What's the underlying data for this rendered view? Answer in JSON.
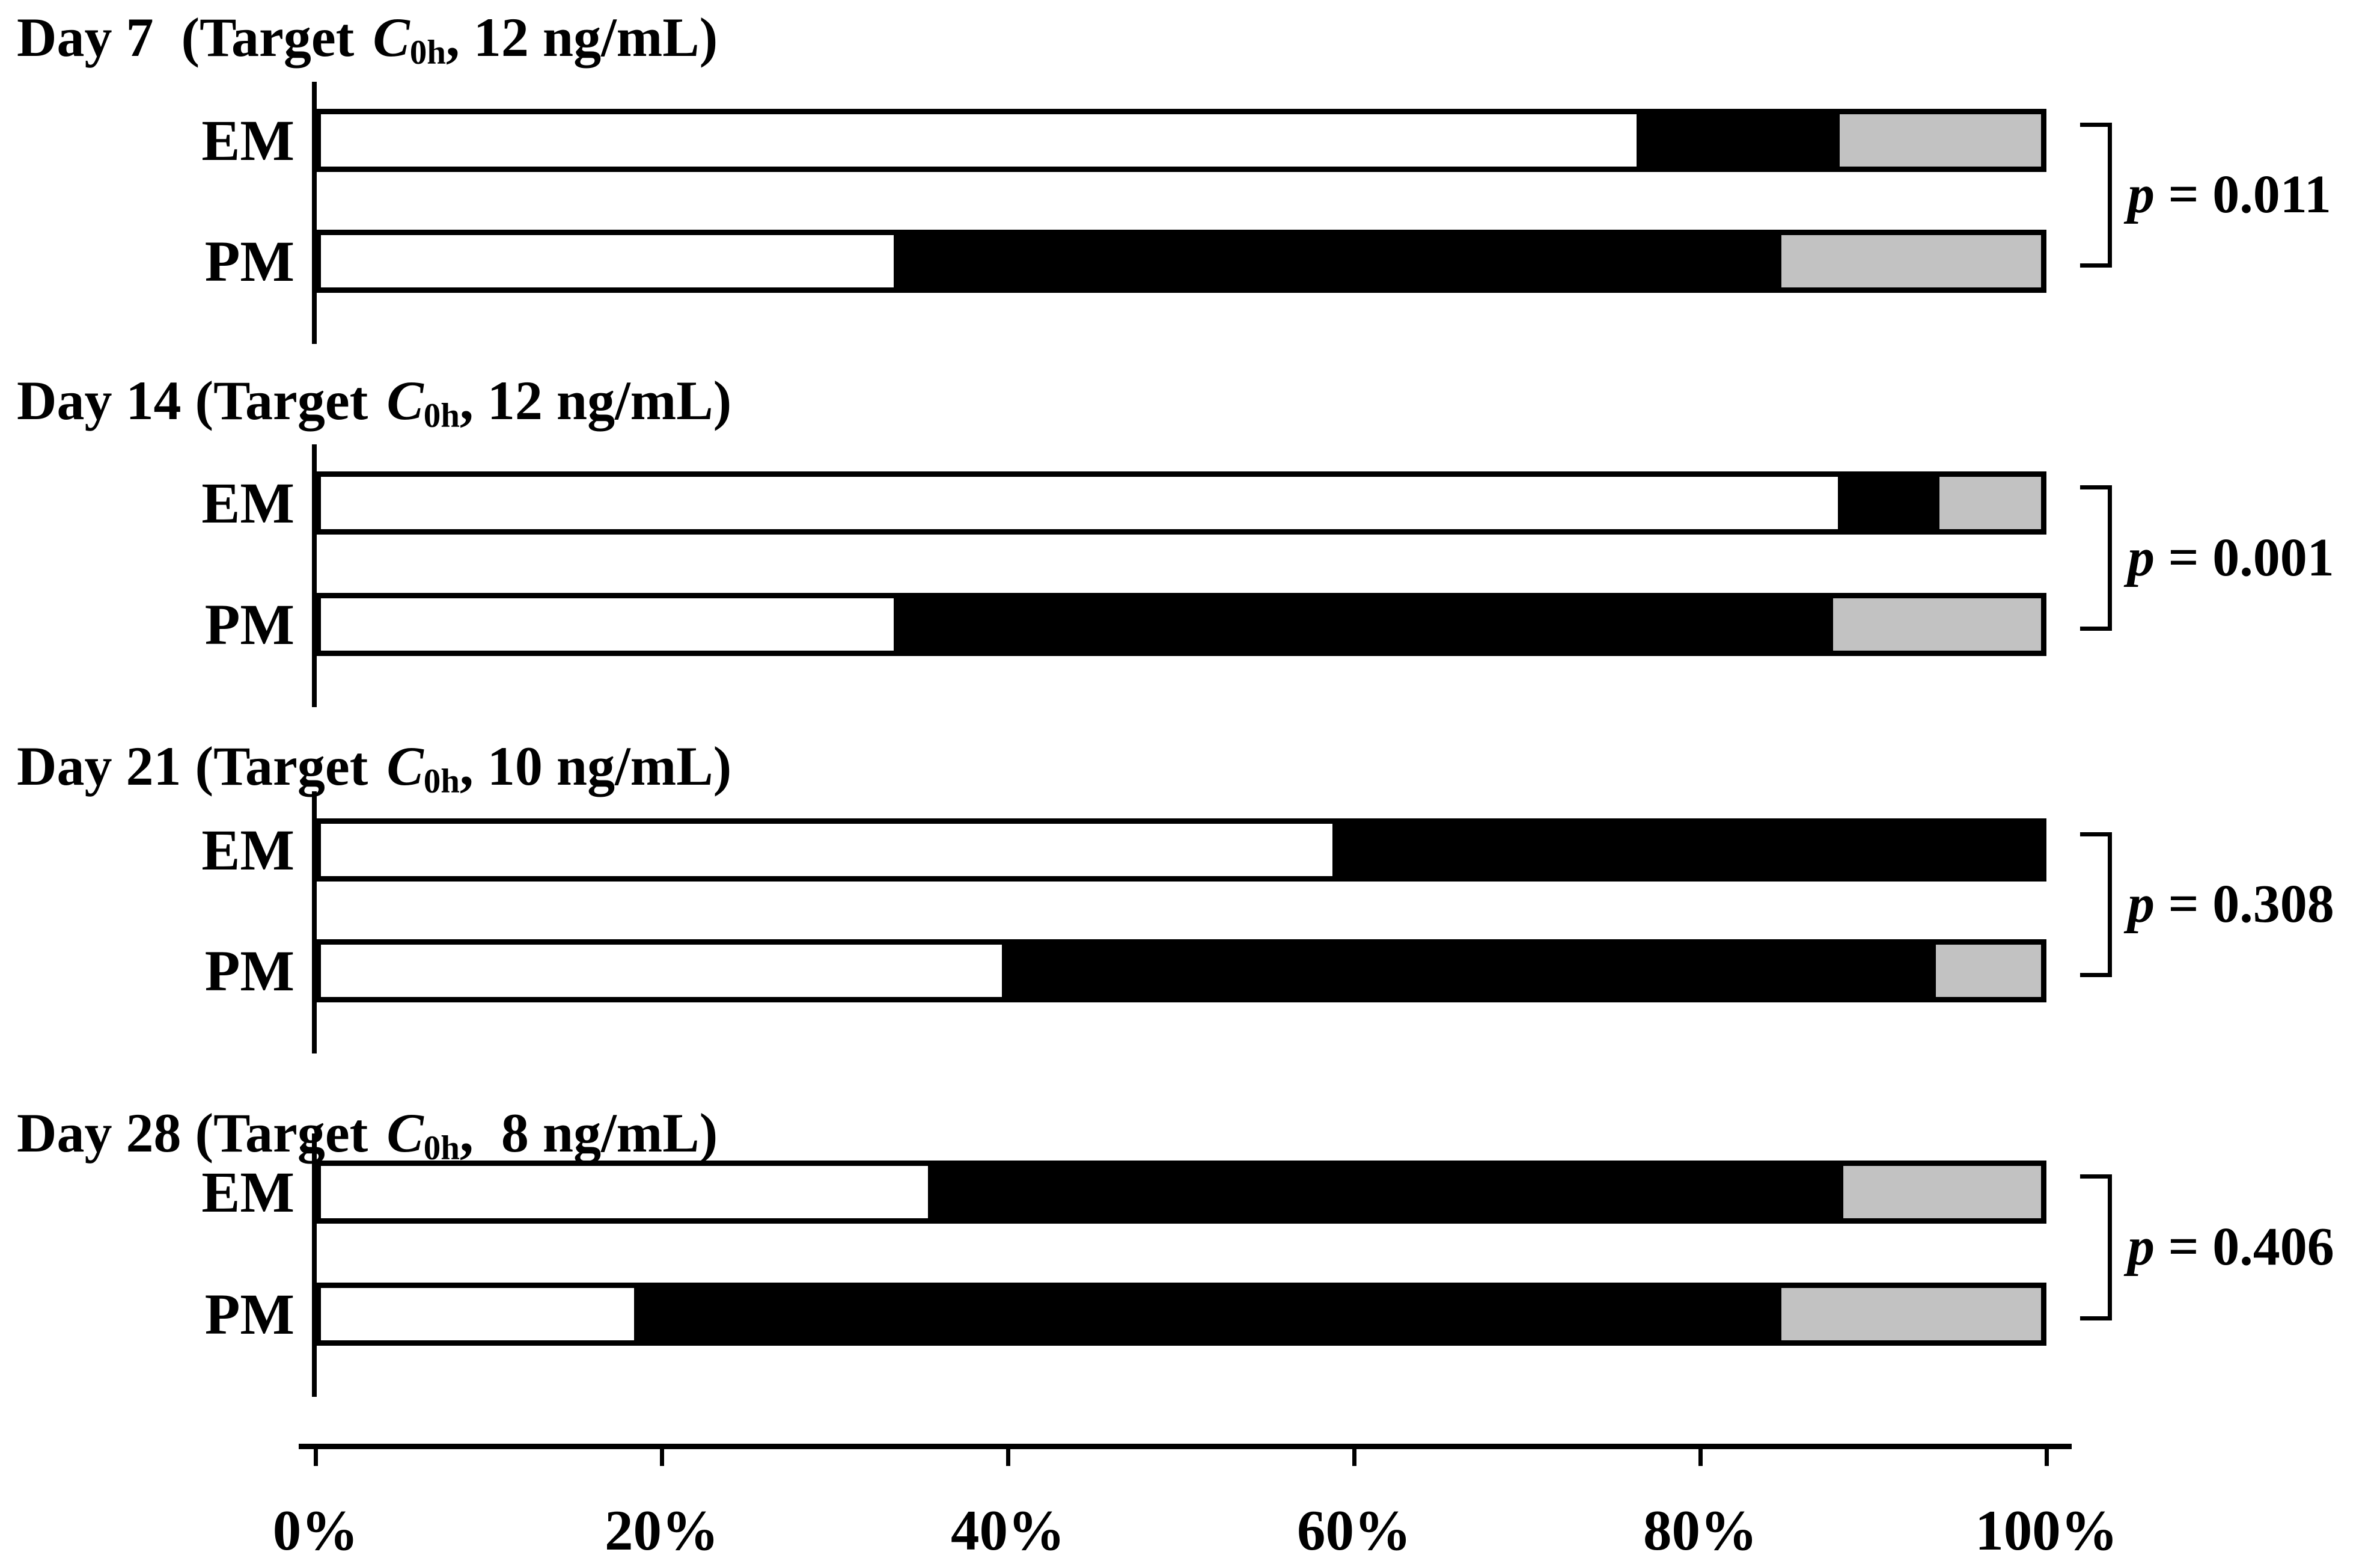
{
  "figure_background": "#ffffff",
  "chart_data": {
    "type": "bar",
    "variant": "horizontal-stacked-percent",
    "x_axis": {
      "ticks": [
        "0%",
        "20%",
        "40%",
        "60%",
        "80%",
        "100%"
      ],
      "range": [
        0,
        100
      ],
      "unit": "percent",
      "grid": false
    },
    "segment_order": [
      "white",
      "black",
      "gray"
    ],
    "segment_colors": {
      "white": "#ffffff",
      "black": "#000000",
      "gray": "#c2c2c2"
    },
    "legend_position": "none",
    "panels": [
      {
        "title": {
          "prefix": "Day 7  (Target ",
          "c_symbol": "C",
          "c_subscript": "0h",
          "suffix": ", 12 ng/mL)"
        },
        "p_label": "p",
        "p_equals": "=",
        "p_value": "0.011",
        "rows": [
          {
            "label": "EM",
            "segments": {
              "white": 76.5,
              "black": 11.8,
              "gray": 11.7
            }
          },
          {
            "label": "PM",
            "segments": {
              "white": 33.3,
              "black": 51.6,
              "gray": 15.1
            }
          }
        ]
      },
      {
        "title": {
          "prefix": "Day 14 (Target ",
          "c_symbol": "C",
          "c_subscript": "0h",
          "suffix": ", 12 ng/mL)"
        },
        "p_label": "p",
        "p_equals": "=",
        "p_value": "0.001",
        "rows": [
          {
            "label": "EM",
            "segments": {
              "white": 88.2,
              "black": 5.9,
              "gray": 5.9
            }
          },
          {
            "label": "PM",
            "segments": {
              "white": 33.3,
              "black": 54.6,
              "gray": 12.1
            }
          }
        ]
      },
      {
        "title": {
          "prefix": "Day 21 (Target ",
          "c_symbol": "C",
          "c_subscript": "0h",
          "suffix": ", 10 ng/mL)"
        },
        "p_label": "p",
        "p_equals": "=",
        "p_value": "0.308",
        "rows": [
          {
            "label": "EM",
            "segments": {
              "white": 58.8,
              "black": 41.2,
              "gray": 0
            }
          },
          {
            "label": "PM",
            "segments": {
              "white": 39.6,
              "black": 54.3,
              "gray": 6.1
            }
          }
        ]
      },
      {
        "title": {
          "prefix": "Day 28 (Target ",
          "c_symbol": "C",
          "c_subscript": "0h",
          "suffix": ",  8 ng/mL)"
        },
        "p_label": "p",
        "p_equals": "=",
        "p_value": "0.406",
        "rows": [
          {
            "label": "EM",
            "segments": {
              "white": 35.3,
              "black": 53.2,
              "gray": 11.5
            }
          },
          {
            "label": "PM",
            "segments": {
              "white": 18.2,
              "black": 66.7,
              "gray": 15.1
            }
          }
        ]
      }
    ]
  }
}
